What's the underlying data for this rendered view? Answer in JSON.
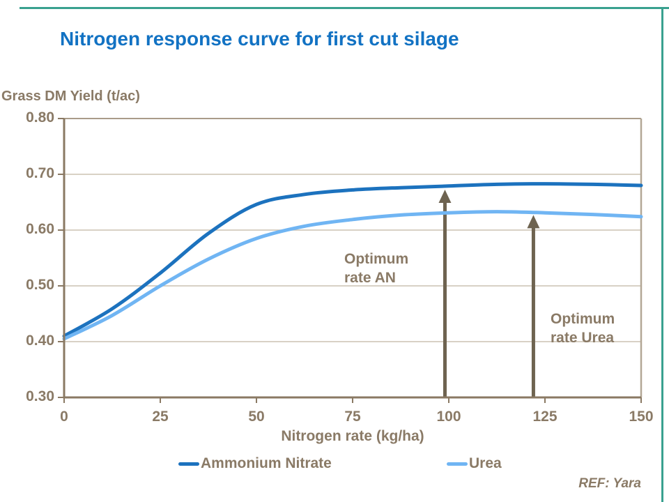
{
  "slide": {
    "title": "Nitrogen response curve for first cut silage",
    "ref": "REF: Yara",
    "accent_color": "#39a18f"
  },
  "chart_data": {
    "type": "line",
    "y_axis_title": "Grass DM Yield (t/ac)",
    "x_axis_title": "Nitrogen rate (kg/ha)",
    "xlim": [
      0,
      150
    ],
    "ylim": [
      0.3,
      0.8
    ],
    "x_ticks": [
      0,
      25,
      50,
      75,
      100,
      125,
      150
    ],
    "y_ticks": [
      "0.30",
      "0.40",
      "0.50",
      "0.60",
      "0.70",
      "0.80"
    ],
    "grid": "horizontal",
    "legend_position": "bottom",
    "x": [
      0,
      12.5,
      25,
      37.5,
      50,
      62.5,
      75,
      87.5,
      100,
      112.5,
      125,
      137.5,
      150
    ],
    "series": [
      {
        "name": "Ammonium Nitrate",
        "color": "#1c72be",
        "values": [
          0.41,
          0.459,
          0.523,
          0.594,
          0.646,
          0.664,
          0.672,
          0.676,
          0.679,
          0.682,
          0.683,
          0.682,
          0.68
        ]
      },
      {
        "name": "Urea",
        "color": "#70b5f3",
        "values": [
          0.405,
          0.447,
          0.5,
          0.548,
          0.585,
          0.607,
          0.619,
          0.627,
          0.631,
          0.633,
          0.631,
          0.628,
          0.624
        ]
      }
    ],
    "annotations": [
      {
        "lines": [
          "Optimum",
          "rate AN"
        ],
        "x": 72.8,
        "y": 0.565
      },
      {
        "lines": [
          "Optimum",
          "rate Urea"
        ],
        "x": 126.4,
        "y": 0.4575
      }
    ],
    "arrows": [
      {
        "x_value": 99,
        "from_y": 0.3,
        "to_y": 0.6725
      },
      {
        "x_value": 122,
        "from_y": 0.3,
        "to_y": 0.627
      }
    ],
    "arrow_color": "#6e6350"
  }
}
